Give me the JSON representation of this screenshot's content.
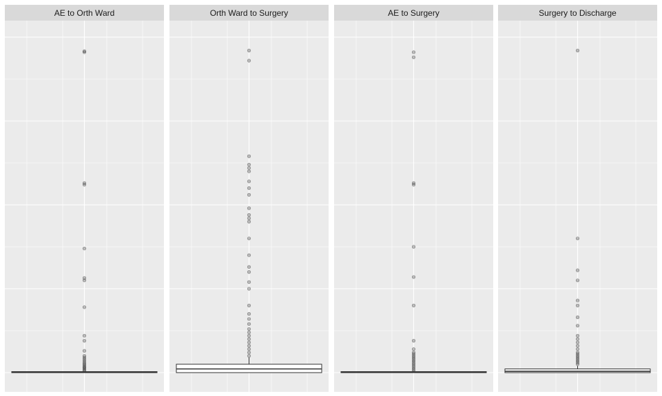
{
  "chart_data": {
    "type": "boxplot",
    "facet_layout": "1 row, 4 columns",
    "shared_y_axis": false,
    "axis_tick_labels_visible": false,
    "grid": true,
    "background": "#EBEBEB",
    "strip_background": "#D9D9D9",
    "gridline_color": "#FFFFFF",
    "box_fill": "#FFFFFF",
    "box_line": "#333333",
    "outlier_color": "#333333",
    "outlier_alpha": 0.3,
    "panels": [
      {
        "title": "AE to Orth Ward",
        "ylim": [
          0,
          1
        ],
        "box": {
          "q1": 0.0,
          "median": 0.0015,
          "q3": 0.003
        },
        "whisker_top": 0.0,
        "outliers": [
          0.005,
          0.008,
          0.012,
          0.015,
          0.018,
          0.022,
          0.026,
          0.03,
          0.035,
          0.04,
          0.045,
          0.05,
          0.065,
          0.095,
          0.11,
          0.195,
          0.275,
          0.282,
          0.37,
          0.56,
          0.565,
          0.955,
          0.958
        ]
      },
      {
        "title": "Orth Ward to Surgery",
        "ylim": [
          0,
          1
        ],
        "box": {
          "q1": 0.0,
          "median": 0.011,
          "q3": 0.025
        },
        "whisker_top": 0.045,
        "outliers": [
          0.05,
          0.06,
          0.07,
          0.08,
          0.09,
          0.1,
          0.11,
          0.12,
          0.13,
          0.145,
          0.16,
          0.175,
          0.2,
          0.25,
          0.27,
          0.3,
          0.315,
          0.35,
          0.4,
          0.45,
          0.46,
          0.47,
          0.49,
          0.53,
          0.55,
          0.57,
          0.6,
          0.61,
          0.62,
          0.645,
          0.93,
          0.96
        ]
      },
      {
        "title": "AE to Surgery",
        "ylim": [
          0,
          1
        ],
        "box": {
          "q1": 0.0,
          "median": 0.0015,
          "q3": 0.003
        },
        "whisker_top": 0.0,
        "outliers": [
          0.005,
          0.01,
          0.015,
          0.02,
          0.025,
          0.03,
          0.035,
          0.04,
          0.045,
          0.05,
          0.055,
          0.06,
          0.07,
          0.095,
          0.2,
          0.285,
          0.375,
          0.56,
          0.565,
          0.94,
          0.955
        ]
      },
      {
        "title": "Surgery to Discharge",
        "ylim": [
          0,
          1
        ],
        "box": {
          "q1": 0.0,
          "median": 0.004,
          "q3": 0.011
        },
        "whisker_top": 0.02,
        "outliers": [
          0.025,
          0.03,
          0.035,
          0.04,
          0.045,
          0.05,
          0.055,
          0.06,
          0.07,
          0.08,
          0.09,
          0.1,
          0.11,
          0.14,
          0.165,
          0.2,
          0.215,
          0.275,
          0.305,
          0.4,
          0.96
        ]
      }
    ]
  }
}
